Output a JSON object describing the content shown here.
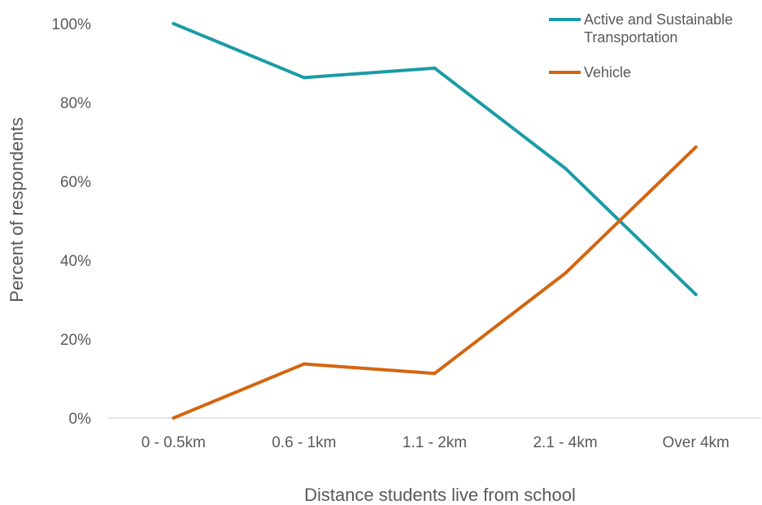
{
  "chart_data": {
    "type": "line",
    "title": "",
    "xlabel": "Distance students live from school",
    "ylabel": "Percent of respondents",
    "categories": [
      "0 - 0.5km",
      "0.6 - 1km",
      "1.1 - 2km",
      "2.1 - 4km",
      "Over 4km"
    ],
    "y_ticks": [
      "0%",
      "20%",
      "40%",
      "60%",
      "80%",
      "100%"
    ],
    "ylim": [
      0,
      100
    ],
    "y_unit": "%",
    "grid": false,
    "legend_position": "top-right",
    "series": [
      {
        "name": "Active and Sustainable Transportation",
        "legend_lines": [
          "Active and Sustainable",
          "Transportation"
        ],
        "color": "#1A9BA6",
        "values": [
          100,
          86.3,
          88.7,
          63.3,
          31.3
        ]
      },
      {
        "name": "Vehicle",
        "legend_lines": [
          "Vehicle"
        ],
        "color": "#D4650F",
        "values": [
          0,
          13.7,
          11.3,
          36.7,
          68.7
        ]
      }
    ]
  }
}
